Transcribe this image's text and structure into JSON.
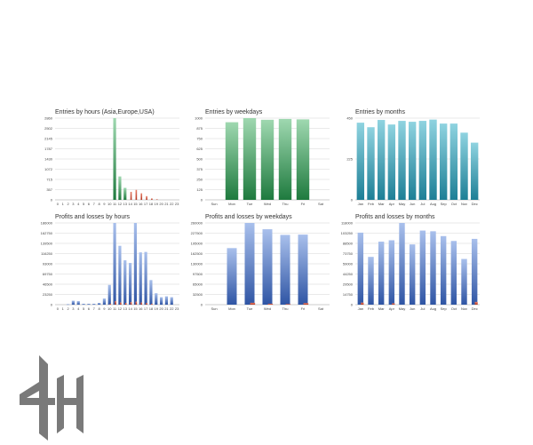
{
  "colors": {
    "entries_green_top": "#9fd8b0",
    "entries_green_bottom": "#1e7a3e",
    "entries_red": "#c0392b",
    "entries_teal_top": "#8fd3e0",
    "entries_teal_bottom": "#1d7f96",
    "profit_blue_top": "#a9c0ec",
    "profit_blue_bottom": "#2f55a4",
    "loss_red": "#d9543a",
    "logo": "#7a7a7a"
  },
  "chart_data": [
    {
      "id": "hours-entries",
      "type": "bar",
      "title": "Entries by hours (Asia,Europe,USA)",
      "categories": [
        "0",
        "1",
        "2",
        "3",
        "4",
        "5",
        "6",
        "7",
        "8",
        "9",
        "10",
        "11",
        "12",
        "13",
        "14",
        "15",
        "16",
        "17",
        "18",
        "19",
        "20",
        "21",
        "22",
        "23"
      ],
      "ylim": [
        0,
        2860
      ],
      "yticks": [
        "2860",
        "2502",
        "2145",
        "1787",
        "1430",
        "1072",
        "715",
        "357",
        "0"
      ],
      "series": [
        {
          "values": [
            0,
            0,
            0,
            0,
            0,
            0,
            0,
            0,
            0,
            0,
            0,
            2860,
            820,
            420,
            0,
            0,
            0,
            0,
            0,
            0,
            0,
            0,
            0,
            0
          ],
          "style": "green"
        },
        {
          "values": [
            0,
            0,
            0,
            0,
            0,
            0,
            0,
            0,
            0,
            0,
            0,
            0,
            0,
            0,
            280,
            350,
            230,
            130,
            50,
            20,
            0,
            0,
            0,
            0
          ],
          "style": "red"
        }
      ]
    },
    {
      "id": "weekday-entries",
      "type": "bar",
      "title": "Entries by weekdays",
      "categories": [
        "Sun",
        "Mon",
        "Tue",
        "Wed",
        "Thu",
        "Fri",
        "Sat"
      ],
      "ylim": [
        0,
        1000
      ],
      "yticks": [
        "1000",
        "875",
        "750",
        "625",
        "500",
        "375",
        "250",
        "125",
        "0"
      ],
      "series": [
        {
          "values": [
            0,
            950,
            1000,
            980,
            990,
            985,
            0
          ],
          "style": "green"
        }
      ]
    },
    {
      "id": "month-entries",
      "type": "bar",
      "title": "Entries by months",
      "categories": [
        "Jan",
        "Feb",
        "Mar",
        "Apr",
        "May",
        "Jun",
        "Jul",
        "Aug",
        "Sep",
        "Oct",
        "Nov",
        "Dec"
      ],
      "ylim": [
        0,
        450
      ],
      "yticks": [
        "450",
        "225",
        "0"
      ],
      "series": [
        {
          "values": [
            425,
            400,
            440,
            415,
            435,
            430,
            435,
            442,
            420,
            420,
            370,
            315
          ],
          "style": "teal"
        }
      ]
    },
    {
      "id": "hours-profit",
      "type": "bar",
      "title": "Profits and losses by hours",
      "categories": [
        "0",
        "1",
        "2",
        "3",
        "4",
        "5",
        "6",
        "7",
        "8",
        "9",
        "10",
        "11",
        "12",
        "13",
        "14",
        "15",
        "16",
        "17",
        "18",
        "19",
        "20",
        "21",
        "22",
        "23"
      ],
      "ylim": [
        0,
        186000
      ],
      "yticks": [
        "186000",
        "162750",
        "139500",
        "116250",
        "93000",
        "69750",
        "46500",
        "23250",
        "0"
      ],
      "series": [
        {
          "values": [
            0,
            0,
            1000,
            9000,
            8000,
            2000,
            2000,
            2000,
            4000,
            14000,
            45000,
            186000,
            134000,
            101000,
            95000,
            186000,
            119000,
            120000,
            56000,
            26000,
            17000,
            19000,
            17000,
            0
          ],
          "style": "blue"
        },
        {
          "values": [
            0,
            0,
            0,
            0,
            0,
            0,
            0,
            0,
            0,
            0,
            2000,
            8000,
            5000,
            4000,
            6000,
            7000,
            5000,
            4000,
            2000,
            0,
            0,
            0,
            0,
            0
          ],
          "style": "red"
        }
      ]
    },
    {
      "id": "weekday-profit",
      "type": "bar",
      "title": "Profits and losses by weekdays",
      "categories": [
        "Sun",
        "Mon",
        "Tue",
        "Wed",
        "Thu",
        "Fri",
        "Sat"
      ],
      "ylim": [
        0,
        260000
      ],
      "yticks": [
        "260000",
        "227500",
        "195000",
        "162500",
        "130000",
        "97500",
        "65000",
        "32500",
        "0"
      ],
      "series": [
        {
          "values": [
            0,
            180000,
            265000,
            240000,
            222000,
            223000,
            0
          ],
          "style": "blue"
        },
        {
          "values": [
            0,
            0,
            6000,
            3000,
            2000,
            5000,
            0
          ],
          "style": "red"
        }
      ]
    },
    {
      "id": "month-profit",
      "type": "bar",
      "title": "Profits and losses by months",
      "categories": [
        "Jan",
        "Feb",
        "Mar",
        "Apr",
        "May",
        "Jun",
        "Jul",
        "Aug",
        "Sep",
        "Oct",
        "Nov",
        "Dec"
      ],
      "ylim": [
        0,
        118000
      ],
      "yticks": [
        "118000",
        "103250",
        "88500",
        "73750",
        "59000",
        "44250",
        "29500",
        "14750",
        "0"
      ],
      "series": [
        {
          "values": [
            104000,
            69000,
            91000,
            93000,
            118000,
            87000,
            107000,
            106000,
            99000,
            92000,
            66000,
            95000
          ],
          "style": "blue"
        },
        {
          "values": [
            3000,
            0,
            0,
            2000,
            0,
            0,
            0,
            0,
            0,
            0,
            0,
            4000
          ],
          "style": "red"
        }
      ]
    }
  ]
}
